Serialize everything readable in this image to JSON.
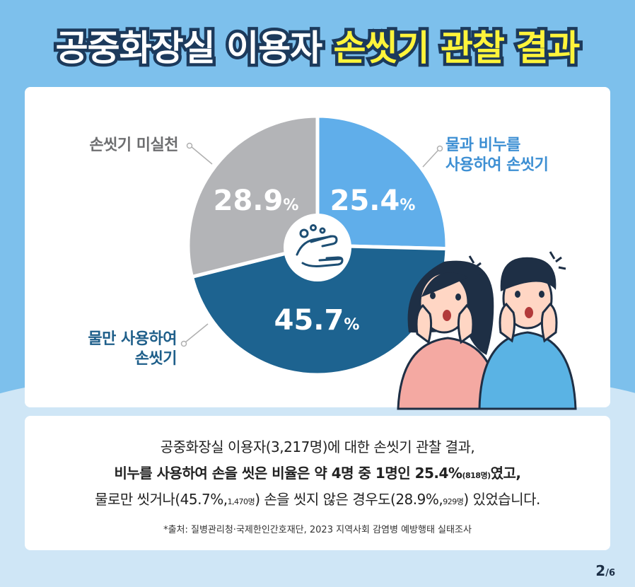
{
  "title": {
    "part1": "공중화장실 이용자",
    "part2": "손씻기 관찰 결과"
  },
  "chart_data": {
    "type": "pie",
    "slices": [
      {
        "label": "물과 비누를 사용하여 손씻기",
        "label_line1": "물과 비누를",
        "label_line2": "사용하여 손씻기",
        "value": 25.4,
        "display": "25.4",
        "color": "#60aeea"
      },
      {
        "label": "물만 사용하여 손씻기",
        "label_line1": "물만 사용하여",
        "label_line2": "손씻기",
        "value": 45.7,
        "display": "45.7",
        "color": "#1d6390"
      },
      {
        "label": "손씻기 미실천",
        "label_line1": "손씻기 미실천",
        "value": 28.9,
        "display": "28.9",
        "color": "#b3b4b7"
      }
    ],
    "unit": "%"
  },
  "description": {
    "line1": "공중화장실 이용자(3,217명)에 대한 손씻기 관찰 결과,",
    "line2_main": "비누를 사용하여 손을 씻은 비율은 약 4명 중 1명인 25.4%",
    "line2_small": "(818명)",
    "line2_end": "였고,",
    "line3_a": "물로만 씻거나(45.7%,",
    "line3_small1": "1,470명",
    "line3_b": ") 손을 씻지 않은 경우도(28.9%,",
    "line3_small2": "929명",
    "line3_c": ") 있었습니다."
  },
  "source": "*출처: 질병관리청·국제한인간호재단, 2023 지역사회 감염병 예방행태 실태조사",
  "pagination": {
    "current": "2",
    "total": "/6"
  }
}
